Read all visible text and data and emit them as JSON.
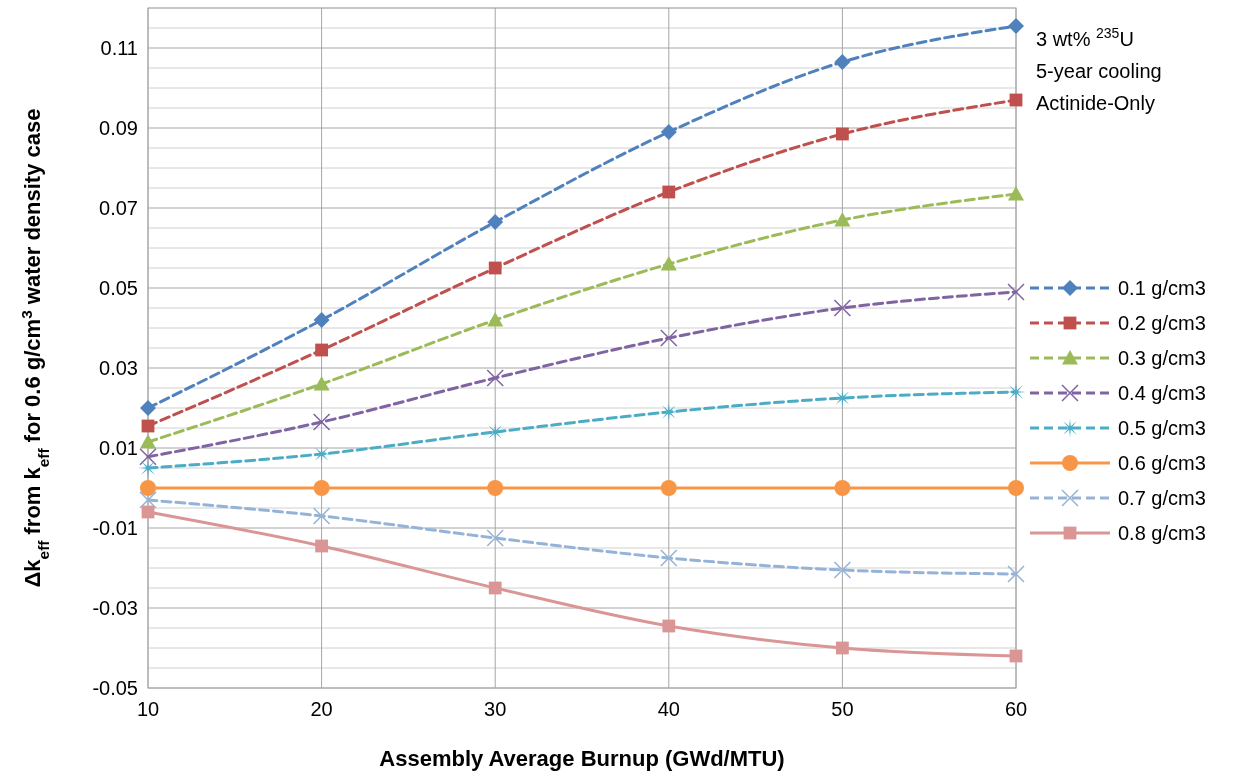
{
  "chart_data": {
    "type": "line",
    "xlabel": "Assembly Average Burnup (GWd/MTU)",
    "ylabel": "Δk$_{eff}$ from k$_{eff}$ for 0.6 g/cm$^{3}$ water density case",
    "annotations": [
      "3 wt% $^{235}$U",
      "5-year cooling",
      "Actinide-Only"
    ],
    "x": [
      10,
      20,
      30,
      40,
      50,
      60
    ],
    "series": [
      {
        "name": "0.1 g/cm3",
        "color": "#4f81bd",
        "marker": "diamond",
        "line_style": "dashed",
        "values": [
          0.02,
          0.042,
          0.0665,
          0.089,
          0.1065,
          0.1155
        ]
      },
      {
        "name": "0.2 g/cm3",
        "color": "#c0504d",
        "marker": "square",
        "line_style": "dashed",
        "values": [
          0.0155,
          0.0345,
          0.055,
          0.074,
          0.0885,
          0.097
        ]
      },
      {
        "name": "0.3 g/cm3",
        "color": "#9bbb59",
        "marker": "triangle",
        "line_style": "dashed",
        "values": [
          0.0115,
          0.026,
          0.042,
          0.056,
          0.067,
          0.0735
        ]
      },
      {
        "name": "0.4 g/cm3",
        "color": "#8064a2",
        "marker": "cross",
        "line_style": "dashed",
        "values": [
          0.0078,
          0.0165,
          0.0275,
          0.0375,
          0.045,
          0.049
        ]
      },
      {
        "name": "0.5 g/cm3",
        "color": "#4bacc6",
        "marker": "star",
        "line_style": "dashed",
        "values": [
          0.005,
          0.0085,
          0.014,
          0.019,
          0.0225,
          0.024
        ]
      },
      {
        "name": "0.6 g/cm3",
        "color": "#f79646",
        "marker": "circle",
        "line_style": "solid",
        "values": [
          0,
          0,
          0,
          0,
          0,
          0
        ]
      },
      {
        "name": "0.7 g/cm3",
        "color": "#95b3d7",
        "marker": "cross",
        "line_style": "dashed",
        "values": [
          -0.003,
          -0.007,
          -0.0125,
          -0.0175,
          -0.0205,
          -0.0215
        ]
      },
      {
        "name": "0.8 g/cm3",
        "color": "#d99694",
        "marker": "square",
        "line_style": "solid",
        "values": [
          -0.006,
          -0.0145,
          -0.025,
          -0.0345,
          -0.04,
          -0.042
        ]
      }
    ],
    "xlim": [
      10,
      60
    ],
    "xticks": [
      10,
      20,
      30,
      40,
      50,
      60
    ],
    "ylim": [
      -0.05,
      0.12
    ],
    "yticks": [
      -0.05,
      {
        "value": -0.045,
        "label": null
      },
      {
        "value": -0.04,
        "label": null
      },
      {
        "value": -0.035,
        "label": null
      },
      -0.03,
      {
        "value": -0.025,
        "label": null
      },
      {
        "value": -0.02,
        "label": null
      },
      {
        "value": -0.015,
        "label": null
      },
      -0.01,
      {
        "value": -0.005,
        "label": null
      },
      {
        "value": 0.005,
        "label": null
      },
      0.01,
      {
        "value": 0.015,
        "label": null
      },
      {
        "value": 0.02,
        "label": null
      },
      {
        "value": 0.025,
        "label": null
      },
      0.03,
      {
        "value": 0.035,
        "label": null
      },
      {
        "value": 0.04,
        "label": null
      },
      {
        "value": 0.045,
        "label": null
      },
      0.05,
      {
        "value": 0.055,
        "label": null
      },
      {
        "value": 0.06,
        "label": null
      },
      {
        "value": 0.065,
        "label": null
      },
      0.07,
      {
        "value": 0.075,
        "label": null
      },
      {
        "value": 0.08,
        "label": null
      },
      {
        "value": 0.085,
        "label": null
      },
      0.09,
      {
        "value": 0.095,
        "label": null
      },
      {
        "value": 0.1,
        "label": null
      },
      {
        "value": 0.105,
        "label": null
      },
      0.11,
      {
        "value": 0.115,
        "label": null
      },
      {
        "value": 0.12,
        "label": null
      }
    ],
    "grid": true,
    "legend": "right"
  }
}
